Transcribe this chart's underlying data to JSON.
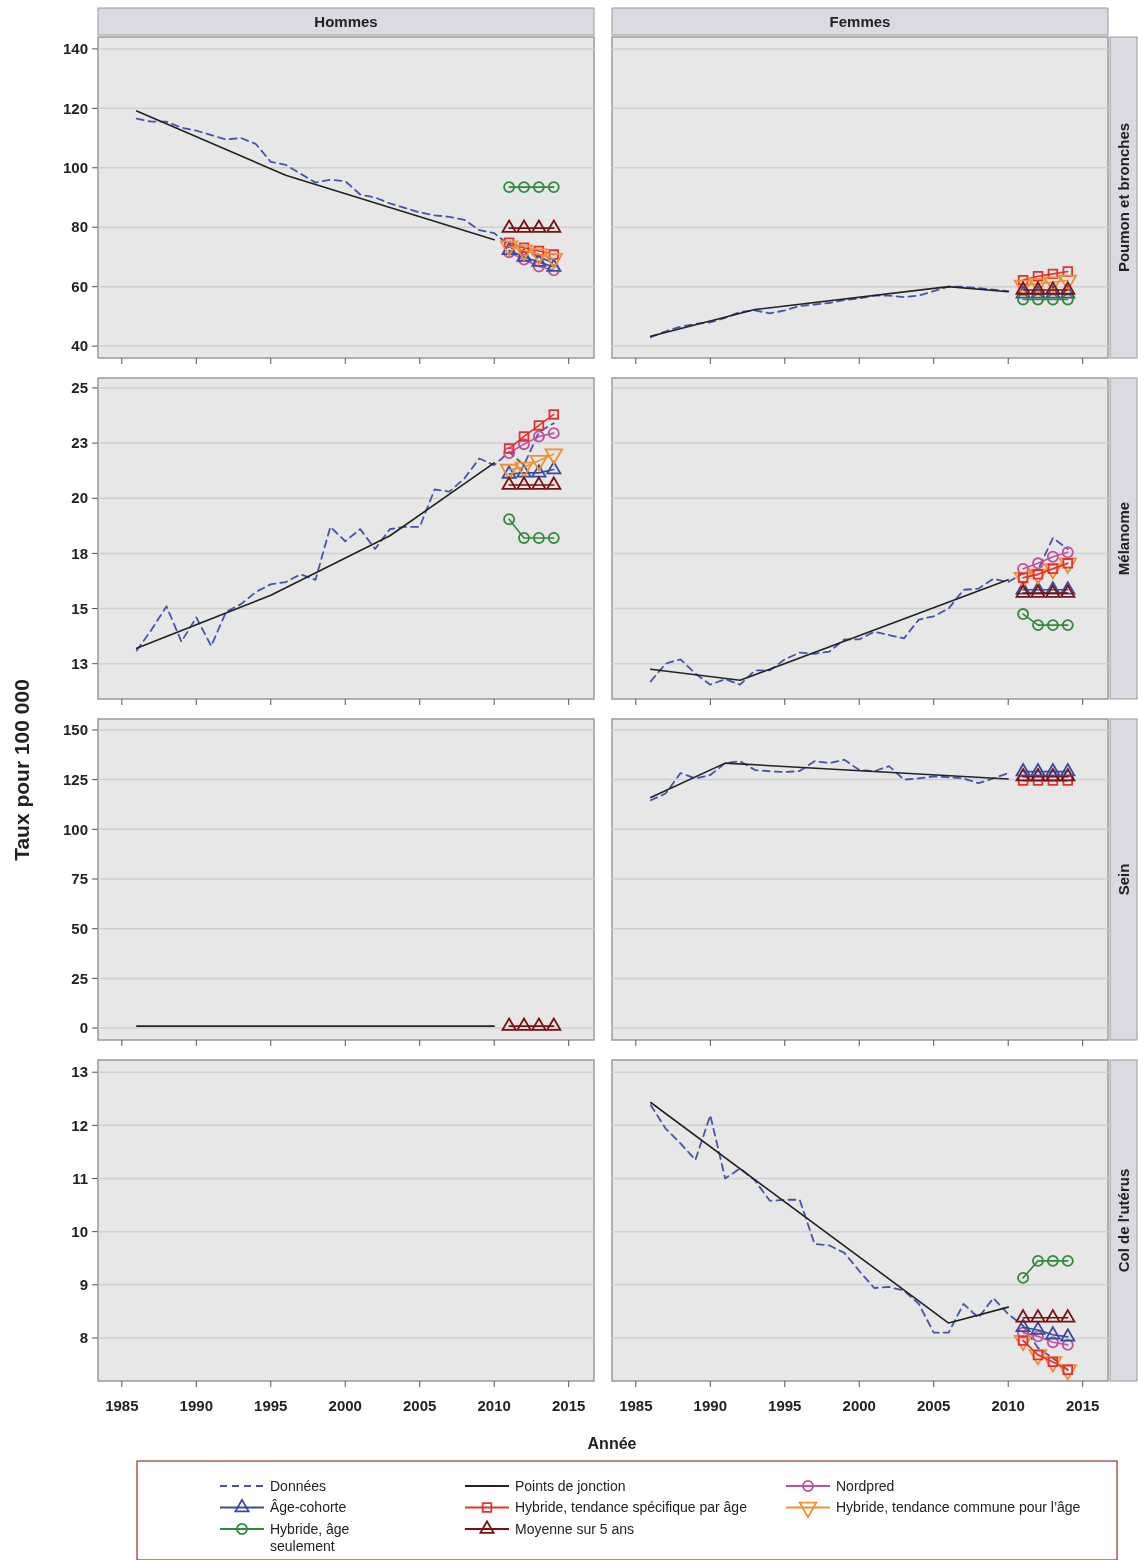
{
  "chart_data": [
    {
      "type": "line",
      "title": "Hommes",
      "legend": "bottom",
      "grid": "y",
      "tick_labels": "y",
      "xlim": [
        1983.4,
        2016.7
      ],
      "xticks": [
        1985,
        1990,
        1995,
        2000,
        2005,
        2010,
        2015
      ],
      "ylim": [
        36,
        144
      ],
      "yticks": [
        40,
        60,
        80,
        100,
        120,
        140
      ],
      "series": [
        {
          "name": "Données",
          "color": "#4455aa",
          "line_style": "dashed",
          "marker": "none",
          "x": [
            1986,
            1987,
            1988,
            1989,
            1990,
            1991,
            1992,
            1993,
            1994,
            1995,
            1996,
            1997,
            1998,
            1999,
            2000,
            2001,
            2002,
            2003,
            2004,
            2005,
            2006,
            2007,
            2008,
            2009,
            2010,
            2011,
            2012,
            2013,
            2014
          ],
          "values": [
            116.5,
            115.5,
            115.5,
            113.5,
            112.5,
            111,
            109.5,
            110,
            108,
            102,
            101,
            98,
            95,
            96,
            95.5,
            91,
            90,
            88,
            86.5,
            85,
            84,
            83.5,
            82.5,
            79,
            78,
            74,
            72,
            70,
            68
          ]
        },
        {
          "name": "Points de jonction",
          "color": "#222222",
          "line_style": "solid",
          "marker": "none",
          "x": [
            1986,
            1996,
            2010
          ],
          "values": [
            119.1,
            97.5,
            75.8
          ]
        },
        {
          "name": "Nordpred",
          "color": "#c050a0",
          "line_style": "solid",
          "marker": "circle",
          "x": [
            2011,
            2012,
            2013,
            2014
          ],
          "values": [
            71.6,
            69.1,
            66.8,
            65.5
          ]
        },
        {
          "name": "Âge-cohorte",
          "color": "#3a4aa0",
          "line_style": "solid",
          "marker": "triangle",
          "x": [
            2011,
            2012,
            2013,
            2014
          ],
          "values": [
            72.2,
            70,
            68.3,
            66.6
          ]
        },
        {
          "name": "Hybride, tendance spécifique par âge",
          "color": "#e83030",
          "line_style": "solid",
          "marker": "square",
          "x": [
            2011,
            2012,
            2013,
            2014
          ],
          "values": [
            74.8,
            73.1,
            72,
            70.8
          ]
        },
        {
          "name": "Hybride, tendance commune pour l’âge",
          "color": "#f09030",
          "line_style": "solid",
          "marker": "triangle-down",
          "x": [
            2011,
            2012,
            2013,
            2014
          ],
          "values": [
            73.6,
            72.2,
            70.9,
            69.4
          ]
        },
        {
          "name": "Hybride, âge seulement",
          "color": "#2e8b3a",
          "line_style": "solid",
          "marker": "circle",
          "x": [
            2011,
            2012,
            2013,
            2014
          ],
          "values": [
            93.5,
            93.5,
            93.5,
            93.5
          ]
        },
        {
          "name": "Moyenne sur 5 ans",
          "color": "#7a1010",
          "line_style": "solid",
          "marker": "triangle",
          "x": [
            2011,
            2012,
            2013,
            2014
          ],
          "values": [
            79.7,
            79.7,
            79.7,
            79.7
          ]
        }
      ]
    },
    {
      "type": "line",
      "title": "Femmes",
      "y2label": "Poumon et bronches",
      "grid": "y",
      "tick_labels": false,
      "xlim": [
        1983.4,
        2016.7
      ],
      "xticks": [
        1985,
        1990,
        1995,
        2000,
        2005,
        2010,
        2015
      ],
      "ylim": [
        36,
        144
      ],
      "yticks": [
        40,
        60,
        80,
        100,
        120,
        140
      ],
      "series": [
        {
          "color": "#4455aa",
          "line_style": "dashed",
          "marker": "none",
          "x": [
            1986,
            1987,
            1988,
            1989,
            1990,
            1991,
            1992,
            1993,
            1994,
            1995,
            1996,
            1997,
            1998,
            1999,
            2000,
            2001,
            2002,
            2003,
            2004,
            2005,
            2006,
            2007,
            2008,
            2009,
            2010
          ],
          "values": [
            43,
            45,
            46.5,
            47.5,
            48,
            49.5,
            51.5,
            52,
            51,
            52,
            53.5,
            54,
            54.5,
            55.5,
            56,
            57,
            57,
            56.5,
            57,
            58.5,
            60,
            60,
            59.5,
            59,
            58.5
          ]
        },
        {
          "color": "#222222",
          "line_style": "solid",
          "marker": "none",
          "x": [
            1986,
            1993,
            2006,
            2010
          ],
          "values": [
            43.3,
            52.3,
            60,
            58.3
          ]
        },
        {
          "color": "#3a4aa0",
          "line_style": "solid",
          "marker": "triangle",
          "x": [
            2011,
            2012,
            2013,
            2014
          ],
          "values": [
            57.6,
            57.6,
            57.6,
            57.6
          ]
        },
        {
          "color": "#e83030",
          "line_style": "solid",
          "marker": "square",
          "x": [
            2011,
            2012,
            2013,
            2014
          ],
          "values": [
            62.2,
            63.5,
            64.3,
            65.1
          ]
        },
        {
          "color": "#f09030",
          "line_style": "solid",
          "marker": "triangle-down",
          "x": [
            2011,
            2012,
            2013,
            2014
          ],
          "values": [
            60.4,
            61,
            61.5,
            62.1
          ]
        },
        {
          "color": "#2e8b3a",
          "line_style": "solid",
          "marker": "circle",
          "x": [
            2011,
            2012,
            2013,
            2014
          ],
          "values": [
            55.7,
            55.7,
            55.7,
            55.7
          ]
        },
        {
          "color": "#7a1010",
          "line_style": "solid",
          "marker": "triangle",
          "x": [
            2011,
            2012,
            2013,
            2014
          ],
          "values": [
            58.9,
            58.9,
            58.9,
            58.9
          ]
        }
      ]
    },
    {
      "type": "line",
      "grid": "y",
      "tick_labels": "y",
      "xlim": [
        1983.4,
        2016.7
      ],
      "xticks": [
        1985,
        1990,
        1995,
        2000,
        2005,
        2010,
        2015
      ],
      "ylim": [
        10.9,
        25.45
      ],
      "yticks": [
        {
          "value": 12.5,
          "label": "13"
        },
        15,
        {
          "value": 17.5,
          "label": "18"
        },
        20,
        {
          "value": 22.5,
          "label": "23"
        },
        25
      ],
      "series": [
        {
          "color": "#4455aa",
          "line_style": "dashed",
          "marker": "none",
          "x": [
            1986,
            1987,
            1988,
            1989,
            1990,
            1991,
            1992,
            1993,
            1994,
            1995,
            1996,
            1997,
            1998,
            1999,
            2000,
            2001,
            2002,
            2003,
            2004,
            2005,
            2006,
            2007,
            2008,
            2009,
            2010,
            2011,
            2012,
            2013,
            2014
          ],
          "values": [
            13.1,
            14.05,
            15.1,
            13.5,
            14.6,
            13.3,
            14.85,
            15.2,
            15.75,
            16.1,
            16.2,
            16.55,
            16.3,
            18.7,
            18.05,
            18.6,
            17.7,
            18.6,
            18.7,
            18.7,
            20.4,
            20.3,
            20.9,
            21.8,
            21.5,
            22.1,
            21.5,
            23,
            23.4
          ]
        },
        {
          "color": "#222222",
          "line_style": "solid",
          "marker": "none",
          "x": [
            1986,
            1995,
            2003,
            2010
          ],
          "values": [
            13.2,
            15.6,
            18.3,
            21.6
          ]
        },
        {
          "color": "#c050a0",
          "line_style": "solid",
          "marker": "circle",
          "x": [
            2011,
            2012,
            2013,
            2014
          ],
          "values": [
            22.05,
            22.45,
            22.8,
            22.95
          ]
        },
        {
          "color": "#3a4aa0",
          "line_style": "solid",
          "marker": "triangle",
          "x": [
            2011,
            2012,
            2013,
            2014
          ],
          "values": [
            21.1,
            21.15,
            21.15,
            21.3
          ]
        },
        {
          "color": "#e83030",
          "line_style": "solid",
          "marker": "square",
          "x": [
            2011,
            2012,
            2013,
            2014
          ],
          "values": [
            22.25,
            22.8,
            23.3,
            23.8
          ]
        },
        {
          "color": "#f09030",
          "line_style": "solid",
          "marker": "triangle-down",
          "x": [
            2011,
            2012,
            2013,
            2014
          ],
          "values": [
            21.3,
            21.4,
            21.7,
            22
          ]
        },
        {
          "color": "#2e8b3a",
          "line_style": "solid",
          "marker": "circle",
          "x": [
            2011,
            2012,
            2013,
            2014
          ],
          "values": [
            19.05,
            18.2,
            18.2,
            18.2
          ]
        },
        {
          "color": "#7a1010",
          "line_style": "solid",
          "marker": "triangle",
          "x": [
            2011,
            2012,
            2013,
            2014
          ],
          "values": [
            20.6,
            20.6,
            20.6,
            20.6
          ]
        }
      ]
    },
    {
      "type": "line",
      "y2label": "Mélanome",
      "grid": "y",
      "tick_labels": false,
      "xlim": [
        1983.4,
        2016.7
      ],
      "xticks": [
        1985,
        1990,
        1995,
        2000,
        2005,
        2010,
        2015
      ],
      "ylim": [
        10.9,
        25.45
      ],
      "yticks": [
        12.5,
        15,
        17.5,
        20,
        22.5,
        25
      ],
      "series": [
        {
          "color": "#4455aa",
          "line_style": "dashed",
          "marker": "none",
          "x": [
            1986,
            1987,
            1988,
            1989,
            1990,
            1991,
            1992,
            1993,
            1994,
            1995,
            1996,
            1997,
            1998,
            1999,
            2000,
            2001,
            2002,
            2003,
            2004,
            2005,
            2006,
            2007,
            2008,
            2009,
            2010,
            2011,
            2012,
            2013,
            2014
          ],
          "values": [
            11.7,
            12.5,
            12.7,
            12.05,
            11.55,
            11.8,
            11.55,
            12.2,
            12.2,
            12.7,
            13,
            12.95,
            13.05,
            13.6,
            13.6,
            13.95,
            13.8,
            13.65,
            14.5,
            14.65,
            15,
            15.85,
            15.9,
            16.35,
            16.2,
            16.6,
            16.75,
            18.2,
            17.7
          ]
        },
        {
          "color": "#222222",
          "line_style": "solid",
          "marker": "none",
          "x": [
            1986,
            1992,
            2010
          ],
          "values": [
            12.25,
            11.75,
            16.3
          ]
        },
        {
          "color": "#c050a0",
          "line_style": "solid",
          "marker": "circle",
          "x": [
            2011,
            2012,
            2013,
            2014
          ],
          "values": [
            16.8,
            17.05,
            17.35,
            17.55
          ]
        },
        {
          "color": "#3a4aa0",
          "line_style": "solid",
          "marker": "triangle",
          "x": [
            2011,
            2012,
            2013,
            2014
          ],
          "values": [
            15.85,
            15.85,
            15.85,
            15.85
          ]
        },
        {
          "color": "#f09030",
          "line_style": "solid",
          "marker": "triangle-down",
          "x": [
            2011,
            2012,
            2013,
            2014
          ],
          "values": [
            16.4,
            16.55,
            16.8,
            17.05
          ]
        },
        {
          "color": "#e83030",
          "line_style": "solid",
          "marker": "square",
          "x": [
            2011,
            2012,
            2013,
            2014
          ],
          "values": [
            16.4,
            16.55,
            16.8,
            17.05
          ]
        },
        {
          "color": "#2e8b3a",
          "line_style": "solid",
          "marker": "circle",
          "x": [
            2011,
            2012,
            2013,
            2014
          ],
          "values": [
            14.75,
            14.25,
            14.25,
            14.25
          ]
        },
        {
          "color": "#7a1010",
          "line_style": "solid",
          "marker": "triangle",
          "x": [
            2011,
            2012,
            2013,
            2014
          ],
          "values": [
            15.7,
            15.7,
            15.7,
            15.7
          ]
        }
      ]
    },
    {
      "type": "line",
      "ylabel": "Taux pour 100 000",
      "grid": "y",
      "tick_labels": "y",
      "xlim": [
        1983.4,
        2016.7
      ],
      "xticks": [
        1985,
        1990,
        1995,
        2000,
        2005,
        2010,
        2015
      ],
      "ylim": [
        -6,
        155.5
      ],
      "yticks": [
        0,
        25,
        50,
        75,
        100,
        125,
        150
      ],
      "series": [
        {
          "color": "#222222",
          "line_style": "solid",
          "marker": "none",
          "x": [
            1986,
            2010
          ],
          "values": [
            1,
            1
          ]
        },
        {
          "color": "#7a1010",
          "line_style": "solid",
          "marker": "triangle",
          "x": [
            2011,
            2012,
            2013,
            2014
          ],
          "values": [
            1,
            1,
            1,
            1
          ]
        }
      ]
    },
    {
      "type": "line",
      "y2label": "Sein",
      "grid": "y",
      "tick_labels": false,
      "xlim": [
        1983.4,
        2016.7
      ],
      "xticks": [
        1985,
        1990,
        1995,
        2000,
        2005,
        2010,
        2015
      ],
      "ylim": [
        -6,
        155.5
      ],
      "yticks": [
        0,
        25,
        50,
        75,
        100,
        125,
        150
      ],
      "series": [
        {
          "color": "#4455aa",
          "line_style": "dashed",
          "marker": "none",
          "x": [
            1986,
            1987,
            1988,
            1989,
            1990,
            1991,
            1992,
            1993,
            1994,
            1995,
            1996,
            1997,
            1998,
            1999,
            2000,
            2001,
            2002,
            2003,
            2004,
            2005,
            2006,
            2007,
            2008,
            2009,
            2010
          ],
          "values": [
            114.6,
            118,
            128.3,
            125.6,
            127.3,
            133.3,
            134.3,
            129.8,
            129.2,
            128.8,
            129.3,
            134.3,
            133.3,
            135,
            129.8,
            129.2,
            131.8,
            125,
            125.6,
            126.6,
            126.2,
            125.6,
            123.2,
            125.6,
            128.3
          ]
        },
        {
          "color": "#222222",
          "line_style": "solid",
          "marker": "none",
          "x": [
            1986,
            1991,
            2010
          ],
          "values": [
            116,
            133.3,
            125.3
          ]
        },
        {
          "color": "#e83030",
          "line_style": "solid",
          "marker": "square",
          "x": [
            2011,
            2012,
            2013,
            2014
          ],
          "values": [
            124.5,
            124.5,
            124.5,
            124.5
          ]
        },
        {
          "color": "#7a1010",
          "line_style": "solid",
          "marker": "triangle",
          "x": [
            2011,
            2012,
            2013,
            2014
          ],
          "values": [
            126.5,
            126.5,
            126.5,
            126.5
          ]
        },
        {
          "color": "#3a4aa0",
          "line_style": "solid",
          "marker": "triangle",
          "x": [
            2011,
            2012,
            2013,
            2014
          ],
          "values": [
            129,
            129,
            129,
            129
          ]
        }
      ]
    },
    {
      "type": "line",
      "xlabel": "Année",
      "grid": "y",
      "xlim": [
        1983.4,
        2016.7
      ],
      "xticks": [
        1985,
        1990,
        1995,
        2000,
        2005,
        2010,
        2015
      ],
      "ylim": [
        7.19,
        13.23
      ],
      "yticks": [
        8,
        9,
        10,
        11,
        12,
        13
      ]
    },
    {
      "type": "line",
      "y2label": "Col de l'utérus",
      "grid": "y",
      "tick_labels": "x",
      "xlim": [
        1983.4,
        2016.7
      ],
      "xticks": [
        1985,
        1990,
        1995,
        2000,
        2005,
        2010,
        2015
      ],
      "ylim": [
        7.19,
        13.23
      ],
      "yticks": [
        8,
        9,
        10,
        11,
        12,
        13
      ],
      "series": [
        {
          "color": "#4455aa",
          "line_style": "dashed",
          "marker": "none",
          "x": [
            1986,
            1987,
            1988,
            1989,
            1990,
            1991,
            1992,
            1993,
            1994,
            1995,
            1996,
            1997,
            1998,
            1999,
            2000,
            2001,
            2002,
            2003,
            2004,
            2005,
            2006,
            2007,
            2008,
            2009,
            2010,
            2011,
            2012,
            2013,
            2014
          ],
          "values": [
            12.38,
            11.94,
            11.66,
            11.35,
            12.19,
            11,
            11.19,
            10.96,
            10.58,
            10.6,
            10.6,
            9.77,
            9.74,
            9.6,
            9.26,
            8.94,
            8.96,
            8.89,
            8.64,
            8.1,
            8.1,
            8.64,
            8.38,
            8.75,
            8.45,
            8.23,
            7.81,
            7.62,
            7.4
          ]
        },
        {
          "color": "#222222",
          "line_style": "solid",
          "marker": "none",
          "x": [
            1986,
            2006,
            2010
          ],
          "values": [
            12.43,
            8.28,
            8.58
          ]
        },
        {
          "color": "#c050a0",
          "line_style": "solid",
          "marker": "circle",
          "x": [
            2011,
            2012,
            2013,
            2014
          ],
          "values": [
            8.1,
            8.03,
            7.92,
            7.87
          ]
        },
        {
          "color": "#3a4aa0",
          "line_style": "solid",
          "marker": "triangle",
          "x": [
            2011,
            2012,
            2013,
            2014
          ],
          "values": [
            8.2,
            8.15,
            8.06,
            8.02
          ]
        },
        {
          "color": "#f09030",
          "line_style": "solid",
          "marker": "triangle-down",
          "x": [
            2011,
            2012,
            2013,
            2014
          ],
          "values": [
            7.95,
            7.68,
            7.55,
            7.4
          ]
        },
        {
          "color": "#e83030",
          "line_style": "solid",
          "marker": "square",
          "x": [
            2011,
            2012,
            2013,
            2014
          ],
          "values": [
            7.95,
            7.68,
            7.55,
            7.4
          ]
        },
        {
          "color": "#2e8b3a",
          "line_style": "solid",
          "marker": "circle",
          "x": [
            2011,
            2012,
            2013,
            2014
          ],
          "values": [
            9.13,
            9.45,
            9.45,
            9.45
          ]
        },
        {
          "color": "#7a1010",
          "line_style": "solid",
          "marker": "triangle",
          "x": [
            2011,
            2012,
            2013,
            2014
          ],
          "values": [
            8.38,
            8.38,
            8.38,
            8.38
          ]
        }
      ]
    }
  ]
}
